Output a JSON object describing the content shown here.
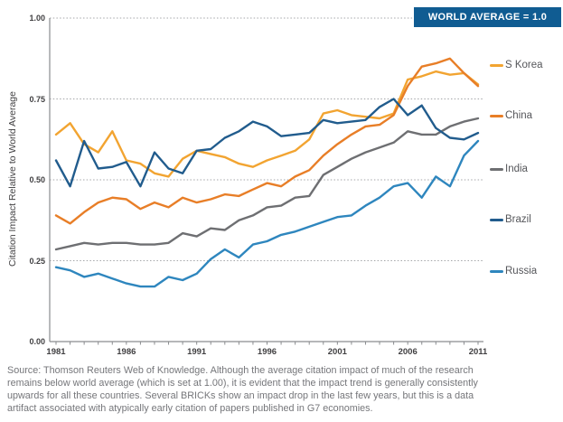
{
  "chart": {
    "badge_label": "WORLD AVERAGE = 1.0",
    "badge_bg": "#105C92",
    "y_axis_title": "Citation Impact Relative to World Average",
    "y_ticks": [
      {
        "label": "1.00",
        "value": 1.0
      },
      {
        "label": "0.75",
        "value": 0.75
      },
      {
        "label": "0.50",
        "value": 0.5
      },
      {
        "label": "0.25",
        "value": 0.25
      },
      {
        "label": "0.00",
        "value": 0.0
      }
    ],
    "x_ticks": [
      "1981",
      "1986",
      "1991",
      "1996",
      "2001",
      "2006",
      "2011"
    ],
    "source_lines": [
      "Source: Thomson Reuters Web of Knowledge. Although the average citation impact of much of the research",
      "remains below world average (which is set at 1.00), it is evident that the impact trend is generally consistently",
      "upwards for all these countries. Several BRICKs show an impact drop in the last few years, but this is a data",
      "artifact associated with atypically early citation of papers published in G7 economies."
    ]
  },
  "chart_data": {
    "type": "line",
    "title": "",
    "xlabel": "",
    "ylabel": "Citation Impact Relative to World Average",
    "xlim": [
      1981,
      2011
    ],
    "ylim": [
      0.0,
      1.0
    ],
    "grid": "horizontal dotted lines every 0.25, world average reference at 1.0",
    "legend_position": "right",
    "x": [
      1981,
      1982,
      1983,
      1984,
      1985,
      1986,
      1987,
      1988,
      1989,
      1990,
      1991,
      1992,
      1993,
      1994,
      1995,
      1996,
      1997,
      1998,
      1999,
      2000,
      2001,
      2002,
      2003,
      2004,
      2005,
      2006,
      2007,
      2008,
      2009,
      2010,
      2011
    ],
    "series": [
      {
        "name": "S Korea",
        "color": "#F2A431",
        "values": [
          0.64,
          0.675,
          0.61,
          0.585,
          0.65,
          0.56,
          0.55,
          0.52,
          0.51,
          0.565,
          0.59,
          0.58,
          0.57,
          0.55,
          0.54,
          0.56,
          0.575,
          0.59,
          0.625,
          0.705,
          0.715,
          0.7,
          0.695,
          0.69,
          0.705,
          0.81,
          0.82,
          0.835,
          0.825,
          0.83,
          0.795
        ]
      },
      {
        "name": "China",
        "color": "#E87E27",
        "values": [
          0.39,
          0.365,
          0.4,
          0.43,
          0.445,
          0.44,
          0.41,
          0.43,
          0.415,
          0.445,
          0.43,
          0.44,
          0.455,
          0.45,
          0.47,
          0.49,
          0.48,
          0.51,
          0.53,
          0.575,
          0.61,
          0.64,
          0.665,
          0.67,
          0.7,
          0.79,
          0.85,
          0.86,
          0.875,
          0.83,
          0.79
        ]
      },
      {
        "name": "India",
        "color": "#6E6F72",
        "values": [
          0.285,
          0.295,
          0.305,
          0.3,
          0.305,
          0.305,
          0.3,
          0.3,
          0.305,
          0.335,
          0.325,
          0.35,
          0.345,
          0.375,
          0.39,
          0.415,
          0.42,
          0.445,
          0.45,
          0.515,
          0.54,
          0.565,
          0.585,
          0.6,
          0.615,
          0.65,
          0.64,
          0.64,
          0.665,
          0.68,
          0.69
        ]
      },
      {
        "name": "Brazil",
        "color": "#215C8D",
        "values": [
          0.56,
          0.48,
          0.62,
          0.535,
          0.54,
          0.555,
          0.48,
          0.585,
          0.535,
          0.52,
          0.59,
          0.595,
          0.63,
          0.65,
          0.68,
          0.665,
          0.635,
          0.64,
          0.645,
          0.685,
          0.675,
          0.68,
          0.685,
          0.725,
          0.75,
          0.7,
          0.73,
          0.66,
          0.63,
          0.625,
          0.645
        ]
      },
      {
        "name": "Russia",
        "color": "#2E86BE",
        "values": [
          0.23,
          0.22,
          0.2,
          0.21,
          0.195,
          0.18,
          0.17,
          0.17,
          0.2,
          0.19,
          0.21,
          0.255,
          0.285,
          0.26,
          0.3,
          0.31,
          0.33,
          0.34,
          0.355,
          0.37,
          0.385,
          0.39,
          0.42,
          0.445,
          0.48,
          0.49,
          0.445,
          0.51,
          0.48,
          0.575,
          0.62
        ]
      }
    ]
  }
}
